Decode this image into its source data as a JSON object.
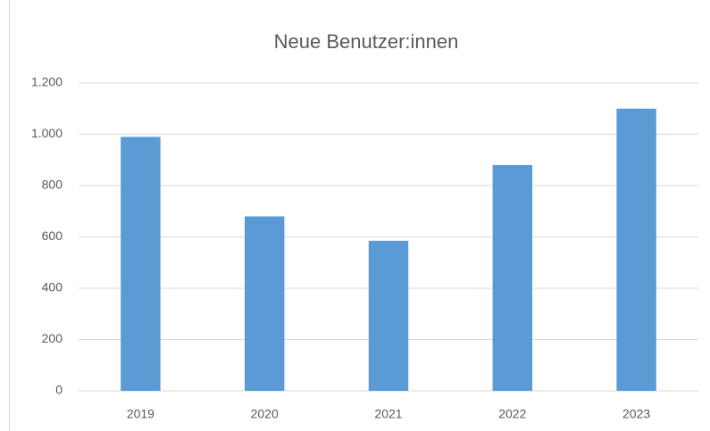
{
  "chart_data": {
    "type": "bar",
    "title": "Neue Benutzer:innen",
    "categories": [
      "2019",
      "2020",
      "2021",
      "2022",
      "2023"
    ],
    "values": [
      990,
      680,
      585,
      880,
      1100
    ],
    "color": "#5b9bd5",
    "ylim": [
      0,
      1200
    ],
    "yticks": [
      0,
      200,
      400,
      600,
      800,
      {
        "value": 1000,
        "label": "1.000"
      },
      {
        "value": 1200,
        "label": "1.200"
      }
    ],
    "grid": true
  }
}
